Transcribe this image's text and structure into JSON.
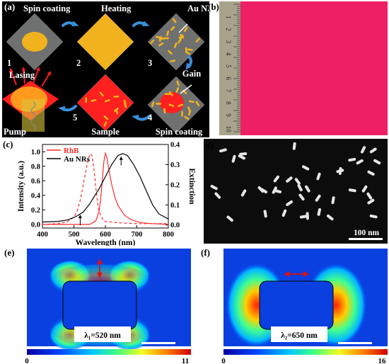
{
  "panels": {
    "a": {
      "label": "(a)",
      "steps": [
        "Spin coating",
        "Heating",
        "Au NRs",
        "Gain",
        "Spin coating",
        "Sample",
        "Lasing",
        "Pump"
      ],
      "numbers": [
        "1",
        "2",
        "3",
        "4",
        "5"
      ],
      "colors": {
        "bg": "#000000",
        "slab": "#6f7170",
        "gold": "#f2b21d",
        "gain": "#ff2020",
        "arrow": "#3a8fd9"
      }
    },
    "b": {
      "label": "(b)",
      "ruler_numbers": [
        "1",
        "2",
        "3",
        "4",
        "5",
        "6",
        "7",
        "8",
        "9",
        "10"
      ],
      "colors": {
        "film": "#ee1f64",
        "ruler": "#a9a38d"
      }
    },
    "c": {
      "label": "(c)"
    },
    "d": {
      "label": "(d)",
      "scale_bar": "100 nm"
    },
    "e": {
      "label": "(e)",
      "annotation": "λ₁=520 nm",
      "colorbar_min": "0",
      "colorbar_max": "11"
    },
    "f": {
      "label": "(f)",
      "annotation": "λ₂=650 nm",
      "colorbar_min": "0",
      "colorbar_max": "16"
    }
  },
  "chart_data": {
    "type": "line",
    "xlabel": "Wavelength (nm)",
    "ylabel": "Intensity (a.u.)",
    "y2label": "Extinction",
    "xlim": [
      400,
      800
    ],
    "ylim": [
      -0.05,
      1.1
    ],
    "y2lim": [
      -0.015,
      0.4
    ],
    "xticks": [
      "400",
      "500",
      "600",
      "700",
      "800"
    ],
    "yticks": [
      "0.0",
      "0.2",
      "0.4",
      "0.6",
      "0.8",
      "1.0"
    ],
    "y2ticks": [
      "0.0",
      "0.1",
      "0.2",
      "0.3",
      "0.4"
    ],
    "legend": [
      {
        "name": "RhB",
        "color": "#ff2a2a"
      },
      {
        "name": "Au NRs",
        "color": "#000000"
      }
    ],
    "series": [
      {
        "name": "RhB absorption",
        "color": "#ff2a2a",
        "dash": true,
        "axis": "left",
        "x": [
          400,
          450,
          480,
          500,
          510,
          520,
          530,
          540,
          548,
          553,
          558,
          565,
          570,
          575,
          580,
          590,
          600,
          650,
          700,
          800
        ],
        "y": [
          0.0,
          0.01,
          0.04,
          0.1,
          0.18,
          0.33,
          0.55,
          0.78,
          0.93,
          0.97,
          0.94,
          0.72,
          0.5,
          0.3,
          0.18,
          0.08,
          0.04,
          0.02,
          0.01,
          0.01
        ]
      },
      {
        "name": "RhB",
        "color": "#ff2a2a",
        "dash": false,
        "axis": "left",
        "x": [
          400,
          550,
          570,
          580,
          585,
          590,
          595,
          600,
          605,
          610,
          620,
          630,
          640,
          660,
          680,
          700,
          720,
          750,
          800
        ],
        "y": [
          0.0,
          0.0,
          0.05,
          0.18,
          0.35,
          0.6,
          0.86,
          0.98,
          0.92,
          0.78,
          0.55,
          0.38,
          0.26,
          0.13,
          0.07,
          0.04,
          0.02,
          0.01,
          0.0
        ]
      },
      {
        "name": "Au NRs",
        "color": "#000000",
        "dash": false,
        "axis": "right",
        "x": [
          400,
          450,
          480,
          500,
          510,
          515,
          520,
          530,
          540,
          550,
          560,
          580,
          600,
          620,
          640,
          655,
          670,
          690,
          710,
          730,
          750,
          770,
          800
        ],
        "y": [
          0.015,
          0.018,
          0.025,
          0.038,
          0.045,
          0.05,
          0.055,
          0.065,
          0.085,
          0.105,
          0.13,
          0.18,
          0.24,
          0.3,
          0.345,
          0.355,
          0.345,
          0.3,
          0.24,
          0.17,
          0.1,
          0.055,
          0.03
        ]
      }
    ],
    "markers": [
      {
        "x": 520,
        "series": "Au NRs"
      },
      {
        "x": 650,
        "series": "Au NRs"
      }
    ]
  }
}
